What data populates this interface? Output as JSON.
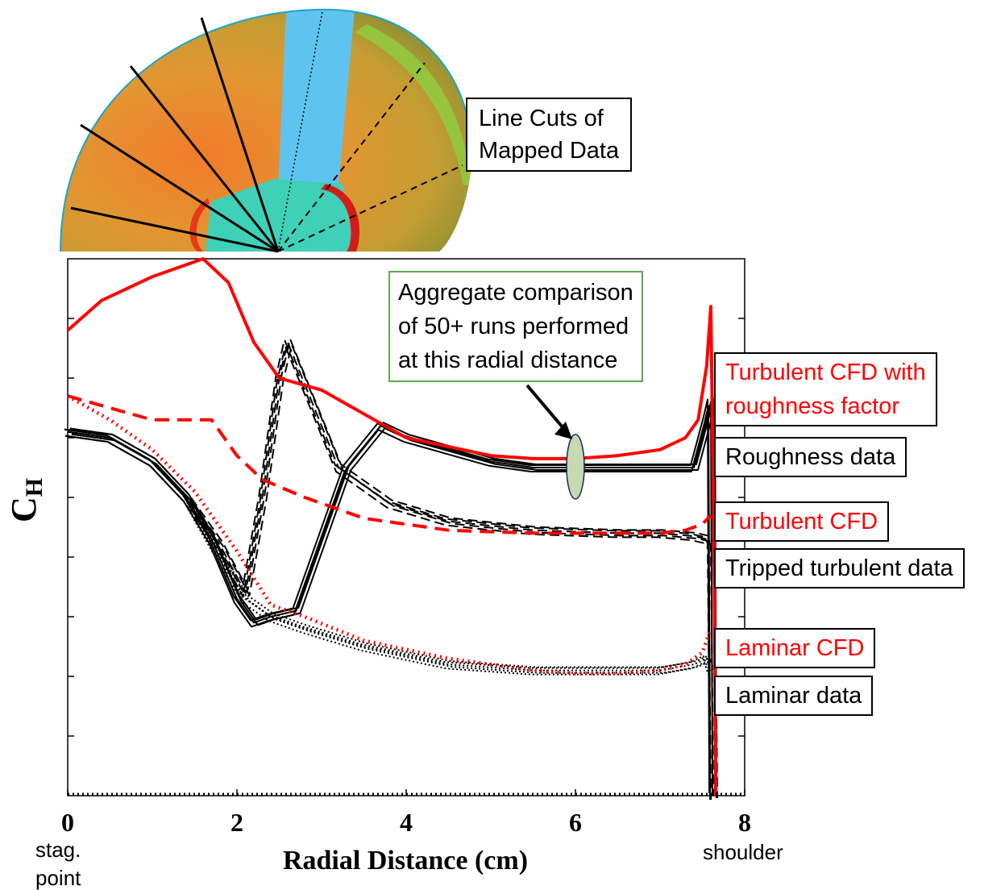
{
  "colors": {
    "cfd": "#ff0000",
    "data": "#000000",
    "callout_border": "#5fa84c",
    "ellipse_fill": "#c6d9b0"
  },
  "inset": {
    "caption": [
      "Line Cuts of",
      "Mapped Data"
    ]
  },
  "callout": [
    "Aggregate comparison",
    "of 50+ runs performed",
    "at this radial distance"
  ],
  "legend": {
    "turb_rough_cfd": [
      "Turbulent CFD with",
      "roughness factor"
    ],
    "rough_data": "Roughness data",
    "turb_cfd": "Turbulent CFD",
    "tripped_data": "Tripped turbulent data",
    "lam_cfd": "Laminar CFD",
    "lam_data": "Laminar data"
  },
  "chart_data": {
    "type": "line",
    "title": "",
    "xlabel": "Radial Distance (cm)",
    "ylabel_main": "C",
    "ylabel_sub": "H",
    "xlim": [
      0,
      8
    ],
    "ylim": [
      0,
      9
    ],
    "x_ticks": [
      0,
      2,
      4,
      6,
      8
    ],
    "x_tick_labels": [
      "0",
      "2",
      "4",
      "6",
      "8"
    ],
    "x_notes": {
      "left": [
        "stag.",
        "point"
      ],
      "right": "shoulder"
    },
    "y_ticks": [
      1,
      2,
      3,
      4,
      5,
      6,
      7,
      8
    ],
    "grid": false,
    "series": [
      {
        "name": "Turbulent CFD with roughness factor",
        "style": "solid-red",
        "x": [
          0,
          0.4,
          1.0,
          1.6,
          1.9,
          2.2,
          2.5,
          3.0,
          4.0,
          5.0,
          5.5,
          6.0,
          6.5,
          7.0,
          7.3,
          7.45,
          7.55,
          7.6,
          7.64,
          7.66
        ],
        "y": [
          7.8,
          8.3,
          8.7,
          9.0,
          8.6,
          7.6,
          7.0,
          6.8,
          6.0,
          5.7,
          5.65,
          5.65,
          5.7,
          5.8,
          6.0,
          6.3,
          7.2,
          8.2,
          4.0,
          0
        ]
      },
      {
        "name": "Turbulent CFD",
        "style": "dashed-red",
        "x": [
          0,
          0.5,
          1.0,
          1.7,
          2.0,
          2.3,
          2.8,
          3.5,
          4.5,
          5.5,
          6.5,
          7.0,
          7.3,
          7.5,
          7.6
        ],
        "y": [
          6.7,
          6.5,
          6.3,
          6.3,
          5.7,
          5.3,
          5.0,
          4.65,
          4.45,
          4.4,
          4.4,
          4.4,
          4.45,
          4.55,
          4.7
        ]
      },
      {
        "name": "Laminar CFD",
        "style": "dotted-red",
        "x": [
          0,
          0.5,
          1.0,
          1.5,
          2.0,
          2.4,
          2.8,
          3.5,
          4.5,
          5.5,
          6.0,
          6.5,
          7.0,
          7.3,
          7.5,
          7.6
        ],
        "y": [
          6.7,
          6.3,
          5.8,
          5.1,
          4.1,
          3.2,
          3.0,
          2.6,
          2.3,
          2.1,
          2.05,
          2.05,
          2.1,
          2.2,
          2.4,
          2.8
        ]
      },
      {
        "name": "Roughness data",
        "style": "solid-black",
        "x": [
          0,
          0.5,
          1.0,
          1.4,
          1.7,
          2.0,
          2.2,
          2.4,
          2.7,
          3.0,
          3.3,
          3.7,
          4.0,
          4.5,
          5.0,
          5.5,
          6.0,
          6.5,
          7.0,
          7.4,
          7.55,
          7.6,
          7.62
        ],
        "y": [
          6.1,
          6.0,
          5.6,
          5.0,
          4.3,
          3.3,
          2.9,
          3.0,
          3.1,
          4.3,
          5.5,
          6.2,
          6.0,
          5.8,
          5.6,
          5.5,
          5.5,
          5.5,
          5.5,
          5.5,
          6.3,
          6.6,
          0
        ]
      },
      {
        "name": "Tripped turbulent data",
        "style": "dashed-black",
        "x": [
          0,
          0.5,
          1.0,
          1.4,
          1.8,
          2.1,
          2.3,
          2.5,
          2.6,
          2.8,
          3.2,
          3.8,
          4.5,
          5.5,
          6.5,
          7.0,
          7.4,
          7.55,
          7.6,
          7.63
        ],
        "y": [
          6.1,
          6.0,
          5.6,
          5.0,
          4.2,
          3.4,
          5.0,
          7.0,
          7.6,
          6.9,
          5.5,
          4.9,
          4.6,
          4.45,
          4.4,
          4.4,
          4.35,
          4.3,
          4.2,
          0
        ]
      },
      {
        "name": "Laminar data",
        "style": "dotted-black",
        "x": [
          0,
          0.5,
          1.0,
          1.4,
          1.8,
          2.1,
          2.4,
          2.8,
          3.5,
          4.5,
          5.5,
          6.5,
          7.0,
          7.4,
          7.55,
          7.6
        ],
        "y": [
          6.1,
          6.0,
          5.6,
          5.0,
          4.0,
          3.3,
          3.0,
          2.8,
          2.5,
          2.2,
          2.1,
          2.1,
          2.1,
          2.2,
          2.3,
          2.1
        ]
      }
    ],
    "callout_x": 6.0
  }
}
